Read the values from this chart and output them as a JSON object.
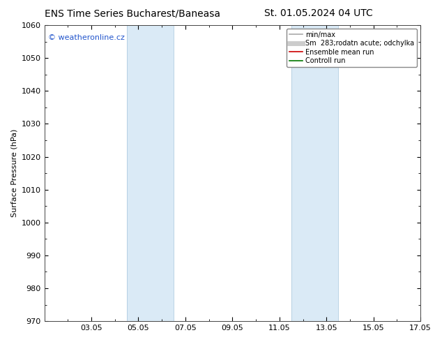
{
  "title_left": "ENS Time Series Bucharest/Baneasa",
  "title_right": "St. 01.05.2024 04 UTC",
  "ylabel": "Surface Pressure (hPa)",
  "ylim": [
    970,
    1060
  ],
  "yticks": [
    970,
    980,
    990,
    1000,
    1010,
    1020,
    1030,
    1040,
    1050,
    1060
  ],
  "xlim": [
    0,
    16
  ],
  "xtick_labels": [
    "03.05",
    "05.05",
    "07.05",
    "09.05",
    "11.05",
    "13.05",
    "15.05",
    "17.05"
  ],
  "xtick_positions": [
    2,
    4,
    6,
    8,
    10,
    12,
    14,
    16
  ],
  "shaded_bands": [
    {
      "xmin": 3.5,
      "xmax": 5.5,
      "color": "#daeaf6"
    },
    {
      "xmin": 10.5,
      "xmax": 12.5,
      "color": "#daeaf6"
    }
  ],
  "shaded_dividers": [
    3.5,
    5.5,
    10.5,
    12.5
  ],
  "legend_entries": [
    {
      "label": "min/max",
      "color": "#aaaaaa",
      "lw": 1.2
    },
    {
      "label": "Sm  283;rodatn acute; odchylka",
      "color": "#cccccc",
      "lw": 5
    },
    {
      "label": "Ensemble mean run",
      "color": "#cc0000",
      "lw": 1.2
    },
    {
      "label": "Controll run",
      "color": "#007700",
      "lw": 1.2
    }
  ],
  "watermark": "© weatheronline.cz",
  "watermark_color": "#2255cc",
  "background_color": "#ffffff",
  "plot_bg_color": "#ffffff",
  "title_fontsize": 10,
  "axis_label_fontsize": 8,
  "tick_fontsize": 8,
  "watermark_fontsize": 8
}
